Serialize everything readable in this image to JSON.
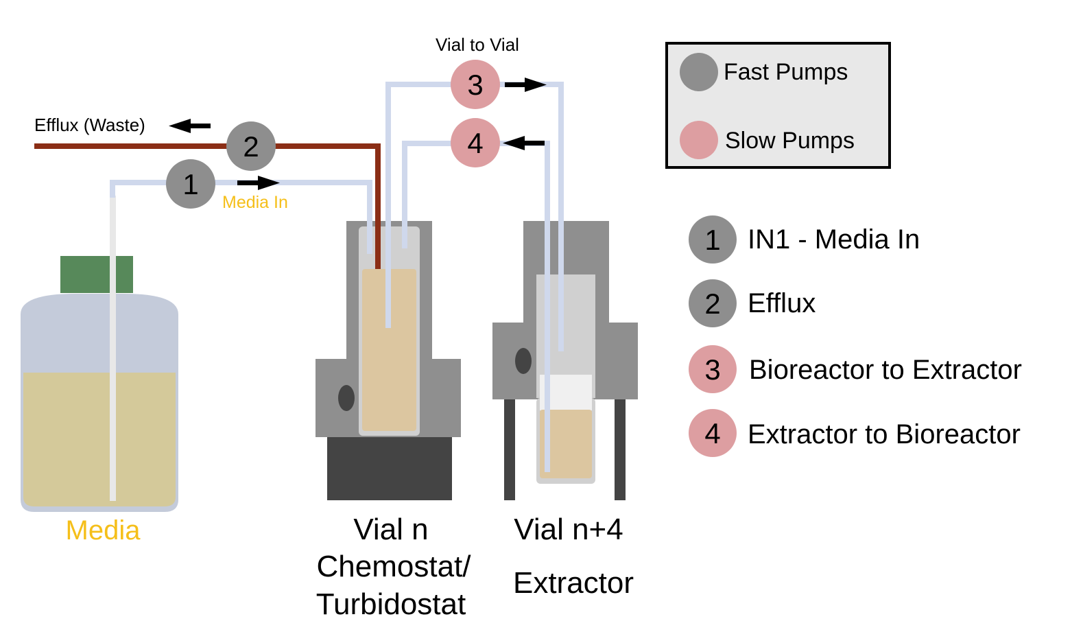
{
  "labels": {
    "vial_to_vial": "Vial to Vial",
    "efflux_waste": "Efflux (Waste)",
    "media_in": "Media In",
    "media": "Media",
    "vial_n_line1": "Vial n",
    "vial_n_line2": "Chemostat/",
    "vial_n_line3": "Turbidostat",
    "vial_n4_line1": "Vial n+4",
    "vial_n4_line2": "Extractor"
  },
  "pumps": {
    "p1": "1",
    "p2": "2",
    "p3": "3",
    "p4": "4"
  },
  "legend_box": {
    "fast_label": "Fast Pumps",
    "slow_label": "Slow Pumps"
  },
  "pump_list": [
    {
      "number": "1",
      "label": "IN1 - Media In",
      "type": "fast"
    },
    {
      "number": "2",
      "label": "Efflux",
      "type": "fast"
    },
    {
      "number": "3",
      "label": "Bioreactor to Extractor",
      "type": "slow"
    },
    {
      "number": "4",
      "label": "Extractor to Bioreactor",
      "type": "slow"
    }
  ],
  "colors": {
    "fast_pump": "#8e8e8e",
    "slow_pump": "#dd9ea1",
    "tube": "#cfd8ec",
    "efflux_tube": "#8b2e16",
    "media_label": "#f5bf1a",
    "media_liquid": "#d4c99a",
    "culture_liquid": "#dcc6a0",
    "cap": "#57895a"
  }
}
